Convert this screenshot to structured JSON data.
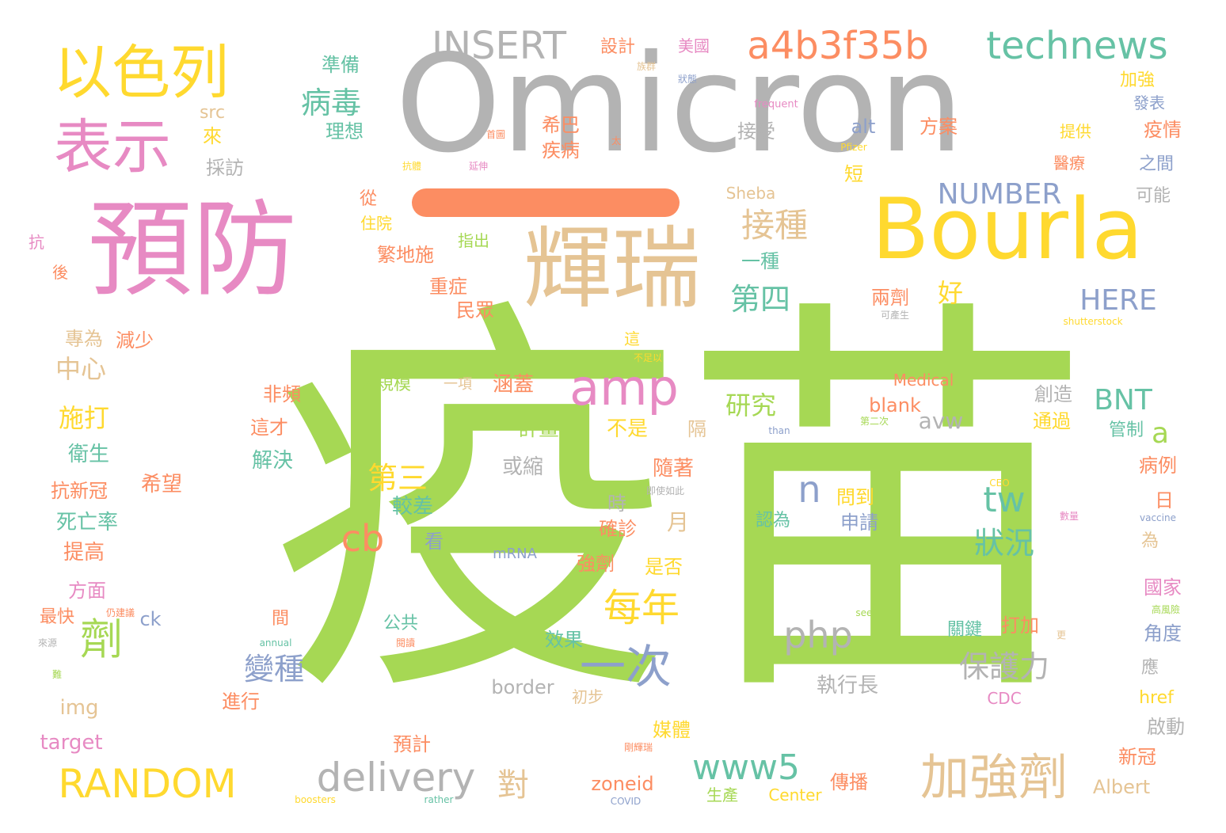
{
  "colors": {
    "green": "#a6d854",
    "gray": "#b3b3b3",
    "pink": "#e78ac3",
    "tan": "#e5c494",
    "yellow": "#ffd92f",
    "orange": "#fc8d62",
    "teal": "#66c2a5",
    "blue": "#8da0cb"
  },
  "words": [
    "疫苗",
    "Omicron",
    "預防",
    "輝瑞",
    "Bourla",
    "以色列",
    "表示",
    "a4b3f35b",
    "technews",
    "INSERT",
    "amp",
    "加強劑",
    "一次",
    "delivery",
    "RANDOM",
    "每年",
    "劑",
    "www5",
    "php",
    "cb",
    "n",
    "tw",
    "www",
    "狀況",
    "保護力",
    "接種",
    "第四",
    "變種",
    "第三",
    "病毒",
    "NUMBER",
    "HERE",
    "BNT",
    "a",
    "對",
    "研究",
    "好",
    "中心",
    "施打",
    "繁地施",
    "理想",
    "準備",
    "接受",
    "alt",
    "方案",
    "疫情",
    "之間",
    "可能",
    "短",
    "從",
    "一種",
    "重症",
    "民眾",
    "兩劑",
    "設計",
    "美國",
    "加強",
    "發表",
    "提供",
    "醫療",
    "希巴",
    "疾病",
    "採訪",
    "來",
    "src",
    "住院",
    "指出",
    "抗",
    "後",
    "專為",
    "減少",
    "大規模",
    "一項",
    "涵蓋",
    "Medical",
    "blank",
    "創造",
    "通過",
    "非頻",
    "這才",
    "計畫",
    "不是",
    "隔",
    "avw",
    "管制",
    "衛生",
    "希望",
    "抗新冠",
    "解決",
    "隨著",
    "或縮",
    "較差",
    "問到",
    "申請",
    "病例",
    "日",
    "死亡率",
    "提高",
    "時",
    "確診",
    "月",
    "看",
    "認為",
    "為",
    "方面",
    "最快",
    "mRNA",
    "強劑",
    "是否",
    "國家",
    "角度",
    "應",
    "ck",
    "間",
    "公共",
    "效果",
    "打加",
    "關鍵",
    "img",
    "border",
    "初步",
    "執行長",
    "CDC",
    "href",
    "target",
    "進行",
    "媒體",
    "預計",
    "啟動",
    "新冠",
    "zoneid",
    "傳播",
    "Albert",
    "生產",
    "Center",
    "Sheba",
    "Pfizer",
    "frequent",
    "族群",
    "狀態",
    "首圖",
    "太",
    "抗體",
    "延伸",
    "這",
    "不足以",
    "可產生",
    "shutterstock",
    "than",
    "第二次",
    "即使如此",
    "CEO",
    "數量",
    "vaccine",
    "高風險",
    "sees",
    "更",
    "annual",
    "閱讀",
    "仍建議",
    "來源",
    "難",
    "剛輝瑞",
    "boosters",
    "rather",
    "COVID"
  ]
}
